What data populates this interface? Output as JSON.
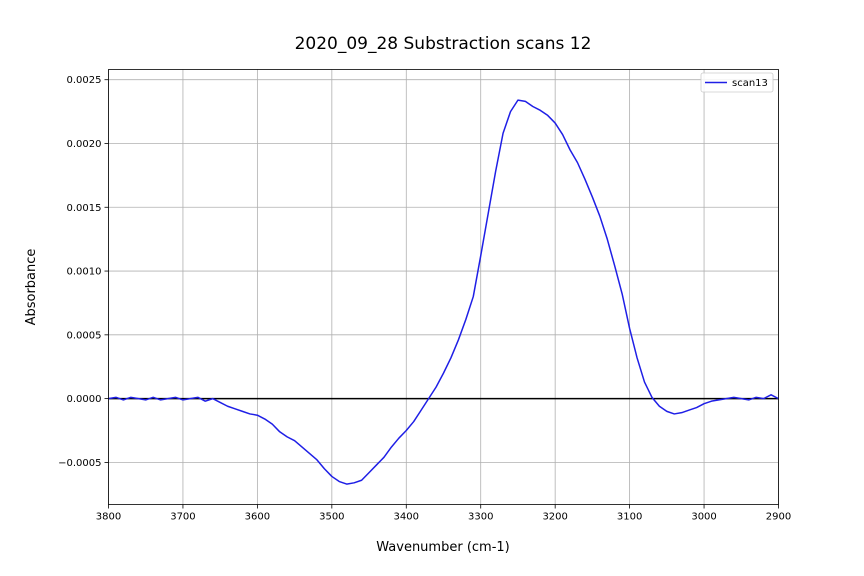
{
  "chart_data": {
    "type": "line",
    "title": "2020_09_28 Substraction scans 12",
    "xlabel": "Wavenumber (cm-1)",
    "ylabel": "Absorbance",
    "xlim": [
      3800,
      2900
    ],
    "ylim": [
      -0.00083,
      0.00258
    ],
    "x_reversed": true,
    "grid": true,
    "legend_position": "top-right",
    "x_ticks": [
      3800,
      3700,
      3600,
      3500,
      3400,
      3300,
      3200,
      3100,
      3000,
      2900
    ],
    "x_tick_labels": [
      "3800",
      "3700",
      "3600",
      "3500",
      "3400",
      "3300",
      "3200",
      "3100",
      "3000",
      "2900"
    ],
    "y_ticks": [
      -0.0005,
      0.0,
      0.0005,
      0.001,
      0.0015,
      0.002,
      0.0025
    ],
    "y_tick_labels": [
      "−0.0005",
      "0.0000",
      "0.0005",
      "0.0010",
      "0.0015",
      "0.0020",
      "0.0025"
    ],
    "reference_line": {
      "y": 0.0,
      "color": "#000000"
    },
    "series": [
      {
        "name": "scan13",
        "color": "#1f1fe6",
        "x": [
          3800,
          3790,
          3780,
          3770,
          3760,
          3750,
          3740,
          3730,
          3720,
          3710,
          3700,
          3690,
          3680,
          3670,
          3660,
          3650,
          3640,
          3630,
          3620,
          3610,
          3600,
          3590,
          3580,
          3570,
          3560,
          3550,
          3540,
          3530,
          3520,
          3510,
          3500,
          3490,
          3480,
          3470,
          3460,
          3450,
          3440,
          3430,
          3420,
          3410,
          3400,
          3390,
          3380,
          3370,
          3360,
          3350,
          3340,
          3330,
          3320,
          3310,
          3300,
          3290,
          3280,
          3270,
          3260,
          3250,
          3240,
          3230,
          3220,
          3210,
          3200,
          3190,
          3180,
          3170,
          3160,
          3150,
          3140,
          3130,
          3120,
          3110,
          3100,
          3090,
          3080,
          3070,
          3060,
          3050,
          3040,
          3030,
          3020,
          3010,
          3000,
          2990,
          2980,
          2970,
          2960,
          2950,
          2940,
          2930,
          2920,
          2910,
          2900
        ],
        "y": [
          0.0,
          1e-05,
          -1e-05,
          1e-05,
          0.0,
          -1e-05,
          1e-05,
          -1e-05,
          0.0,
          1e-05,
          -1e-05,
          0.0,
          1e-05,
          -2e-05,
          0.0,
          -3e-05,
          -6e-05,
          -8e-05,
          -0.0001,
          -0.00012,
          -0.00013,
          -0.00016,
          -0.0002,
          -0.00026,
          -0.0003,
          -0.00033,
          -0.00038,
          -0.00043,
          -0.00048,
          -0.00055,
          -0.00061,
          -0.00065,
          -0.00067,
          -0.00066,
          -0.00064,
          -0.00058,
          -0.00052,
          -0.00046,
          -0.00038,
          -0.00031,
          -0.00025,
          -0.00018,
          -9e-05,
          0.0,
          9e-05,
          0.0002,
          0.00032,
          0.00046,
          0.00062,
          0.0008,
          0.00112,
          0.00145,
          0.00178,
          0.00208,
          0.00225,
          0.00234,
          0.00233,
          0.00229,
          0.00226,
          0.00222,
          0.00216,
          0.00207,
          0.00195,
          0.00185,
          0.00172,
          0.00158,
          0.00143,
          0.00125,
          0.00104,
          0.00082,
          0.00055,
          0.00032,
          0.00013,
          1e-05,
          -6e-05,
          -0.0001,
          -0.00012,
          -0.00011,
          -9e-05,
          -7e-05,
          -4e-05,
          -2e-05,
          -1e-05,
          0.0,
          1e-05,
          0.0,
          -1e-05,
          1e-05,
          0.0,
          3e-05,
          0.0
        ]
      }
    ]
  }
}
